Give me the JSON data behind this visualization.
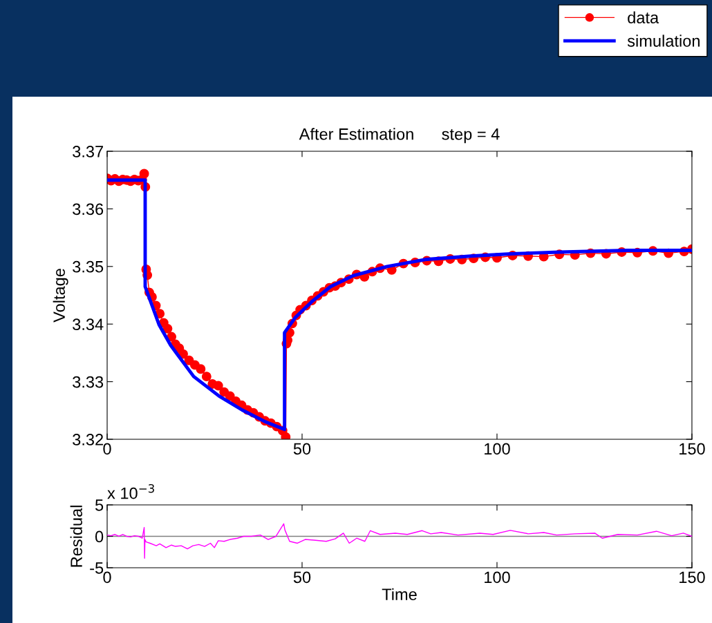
{
  "chart_data": [
    {
      "type": "line",
      "title": "After Estimation      step = 4",
      "ylabel": "Voltage",
      "xlim": [
        0,
        150
      ],
      "ylim": [
        3.32,
        3.37
      ],
      "xticks": [
        0,
        50,
        100,
        150
      ],
      "yticks": [
        3.32,
        3.33,
        3.34,
        3.35,
        3.36,
        3.37
      ],
      "grid": false,
      "legend": "top right",
      "series": [
        {
          "name": "data",
          "color": "#ff0000",
          "marker": "circle",
          "x": [
            0,
            1,
            2,
            3,
            4,
            5,
            6,
            7,
            8,
            9,
            9.5,
            9.8,
            10,
            10.3,
            10.8,
            11.5,
            12.5,
            13.5,
            14.5,
            15.5,
            16.5,
            17.5,
            18.5,
            19.5,
            21,
            22.5,
            24,
            25.5,
            27,
            28.5,
            30,
            31.5,
            33,
            34.5,
            36,
            37.5,
            39,
            40.5,
            42,
            43.5,
            45,
            45.8,
            46,
            46.3,
            46.8,
            47.5,
            48.5,
            49.5,
            51,
            52.5,
            54,
            55.5,
            57,
            58.5,
            60,
            62,
            64,
            66,
            68,
            70,
            73,
            76,
            79,
            82,
            85,
            88,
            91,
            94,
            97,
            100,
            104,
            108,
            112,
            116,
            120,
            124,
            128,
            132,
            136,
            140,
            144,
            148,
            150
          ],
          "values": [
            3.3653,
            3.3649,
            3.3652,
            3.3648,
            3.3651,
            3.365,
            3.3648,
            3.3651,
            3.3649,
            3.3651,
            3.3661,
            3.3638,
            3.3495,
            3.3485,
            3.3455,
            3.3447,
            3.3432,
            3.3418,
            3.3402,
            3.3392,
            3.3378,
            3.3365,
            3.3358,
            3.3348,
            3.3337,
            3.3329,
            3.3322,
            3.3309,
            3.3296,
            3.3293,
            3.3282,
            3.3275,
            3.3266,
            3.3259,
            3.3251,
            3.3246,
            3.3239,
            3.3232,
            3.3228,
            3.3222,
            3.3215,
            3.3204,
            3.3366,
            3.3372,
            3.3385,
            3.3401,
            3.3415,
            3.3425,
            3.3432,
            3.3441,
            3.3449,
            3.3456,
            3.3463,
            3.3466,
            3.3472,
            3.3478,
            3.3486,
            3.3482,
            3.3491,
            3.3497,
            3.3494,
            3.3505,
            3.3507,
            3.351,
            3.3509,
            3.3513,
            3.3512,
            3.3514,
            3.3516,
            3.3515,
            3.3519,
            3.3518,
            3.3517,
            3.3521,
            3.352,
            3.3523,
            3.3522,
            3.3525,
            3.3524,
            3.3527,
            3.3523,
            3.3526,
            3.353
          ]
        },
        {
          "name": "simulation",
          "color": "#0000ff",
          "marker": "none",
          "x": [
            0,
            9.75,
            9.75,
            13.3,
            16.3,
            22.2,
            28.7,
            34.6,
            40.4,
            45.5,
            45.5,
            48.2,
            52.5,
            57.3,
            63.1,
            71.8,
            81.5,
            93.3,
            103.7,
            116.1,
            133.5,
            150
          ],
          "values": [
            3.365,
            3.365,
            3.3465,
            3.3399,
            3.3363,
            3.3309,
            3.3275,
            3.3251,
            3.3231,
            3.3217,
            3.3385,
            3.3411,
            3.3439,
            3.3465,
            3.3484,
            3.35,
            3.3512,
            3.3518,
            3.3522,
            3.3525,
            3.3528,
            3.3528
          ]
        }
      ]
    },
    {
      "type": "line",
      "xlabel": "Time",
      "ylabel": "Residual",
      "xlim": [
        0,
        150
      ],
      "ylim": [
        -5,
        5
      ],
      "xticks": [
        0,
        50,
        100,
        150
      ],
      "yticks": [
        -5,
        0,
        5
      ],
      "grid": false,
      "annotations": [
        "x 10$^{−3}$"
      ],
      "ref_lines": [
        {
          "axis": "y",
          "value": 0,
          "color": "#808080"
        }
      ],
      "series": [
        {
          "color": "#ff00ff",
          "x": [
            0,
            1,
            2,
            3,
            4,
            5,
            6,
            7,
            8,
            9,
            9.5,
            9.6,
            9.7,
            10,
            11,
            12.6,
            13.5,
            15.1,
            16.5,
            17.5,
            19,
            20.6,
            22,
            23.5,
            25,
            26.5,
            27.5,
            28.5,
            30,
            31.5,
            33.4,
            35,
            37,
            39.3,
            41.3,
            43.3,
            45.3,
            45.6,
            46.8,
            48.8,
            50.8,
            53,
            56.2,
            58.5,
            60.6,
            62.1,
            64,
            66.1,
            67.5,
            70,
            73.9,
            77,
            80.8,
            83,
            85.7,
            90,
            95.6,
            99,
            103.4,
            108,
            112,
            115.3,
            120,
            125.1,
            127,
            131,
            136,
            140.9,
            144.8,
            147.8,
            150
          ],
          "values": [
            0.2,
            0.1,
            0.3,
            0,
            0.3,
            0,
            -0.1,
            0.1,
            0,
            -0.3,
            1.4,
            -3.5,
            -0.5,
            -0.9,
            -1.1,
            -1.5,
            -1.2,
            -1.8,
            -1.4,
            -1.6,
            -1.5,
            -2.0,
            -1.5,
            -1.3,
            -1.6,
            -1.1,
            -1.8,
            -0.7,
            -0.8,
            -0.5,
            -0.3,
            0,
            0,
            0.2,
            -0.5,
            0,
            2.0,
            1.0,
            -0.8,
            -1.1,
            -0.5,
            -0.6,
            -0.8,
            -0.4,
            0.5,
            -1.1,
            -0.3,
            -0.8,
            0.9,
            0.3,
            0.5,
            0.3,
            0.9,
            0.4,
            0.6,
            0.2,
            0.5,
            0.3,
            0.95,
            0.4,
            0.6,
            0.2,
            0.4,
            0.5,
            -0.3,
            0.3,
            0.2,
            0.8,
            0.1,
            0.5,
            0
          ]
        }
      ]
    }
  ]
}
